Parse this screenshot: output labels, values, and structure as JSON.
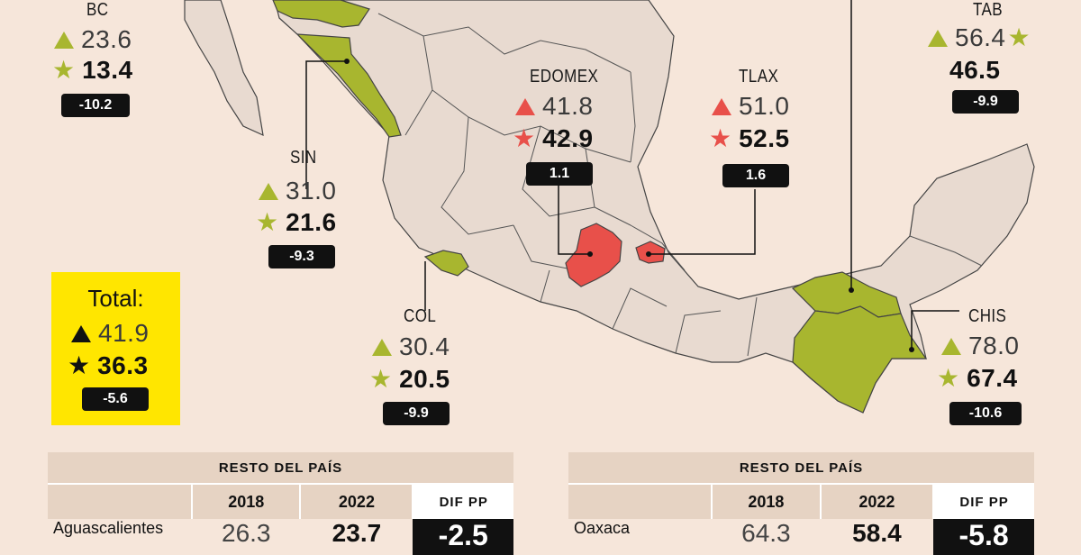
{
  "legend_symbols": {
    "triangle": "2018",
    "star": "2022"
  },
  "colors": {
    "background": "#f6e6da",
    "land": "#e8dad0",
    "border": "#444444",
    "decrease": "#a8b62f",
    "increase": "#e8504a",
    "total_box": "#ffe600",
    "badge": "#111111"
  },
  "states": {
    "bc": {
      "label": "BC",
      "v2018": "23.6",
      "v2022": "13.4",
      "diff": "-10.2",
      "trend": "decrease"
    },
    "sin": {
      "label": "SIN",
      "v2018": "31.0",
      "v2022": "21.6",
      "diff": "-9.3",
      "trend": "decrease"
    },
    "col": {
      "label": "COL",
      "v2018": "30.4",
      "v2022": "20.5",
      "diff": "-9.9",
      "trend": "decrease"
    },
    "edomex": {
      "label": "EDOMEX",
      "v2018": "41.8",
      "v2022": "42.9",
      "diff": "1.1",
      "trend": "increase"
    },
    "tlax": {
      "label": "TLAX",
      "v2018": "51.0",
      "v2022": "52.5",
      "diff": "1.6",
      "trend": "increase"
    },
    "tab": {
      "label": "TAB",
      "v2018": "56.4",
      "v2022": "46.5",
      "diff": "-9.9",
      "trend": "decrease"
    },
    "chis": {
      "label": "CHIS",
      "v2018": "78.0",
      "v2022": "67.4",
      "diff": "-10.6",
      "trend": "decrease"
    }
  },
  "total": {
    "label": "Total:",
    "v2018": "41.9",
    "v2022": "36.3",
    "diff": "-5.6"
  },
  "tables": [
    {
      "title": "RESTO DEL PAÍS",
      "col_2018": "2018",
      "col_2022": "2022",
      "col_diff": "DIF PP",
      "rows": [
        {
          "name": "Aguascalientes",
          "v2018": "26.3",
          "v2022": "23.7",
          "diff": "-2.5"
        }
      ]
    },
    {
      "title": "RESTO DEL PAÍS",
      "col_2018": "2018",
      "col_2022": "2022",
      "col_diff": "DIF PP",
      "rows": [
        {
          "name": "Oaxaca",
          "v2018": "64.3",
          "v2022": "58.4",
          "diff": "-5.8"
        }
      ]
    }
  ]
}
